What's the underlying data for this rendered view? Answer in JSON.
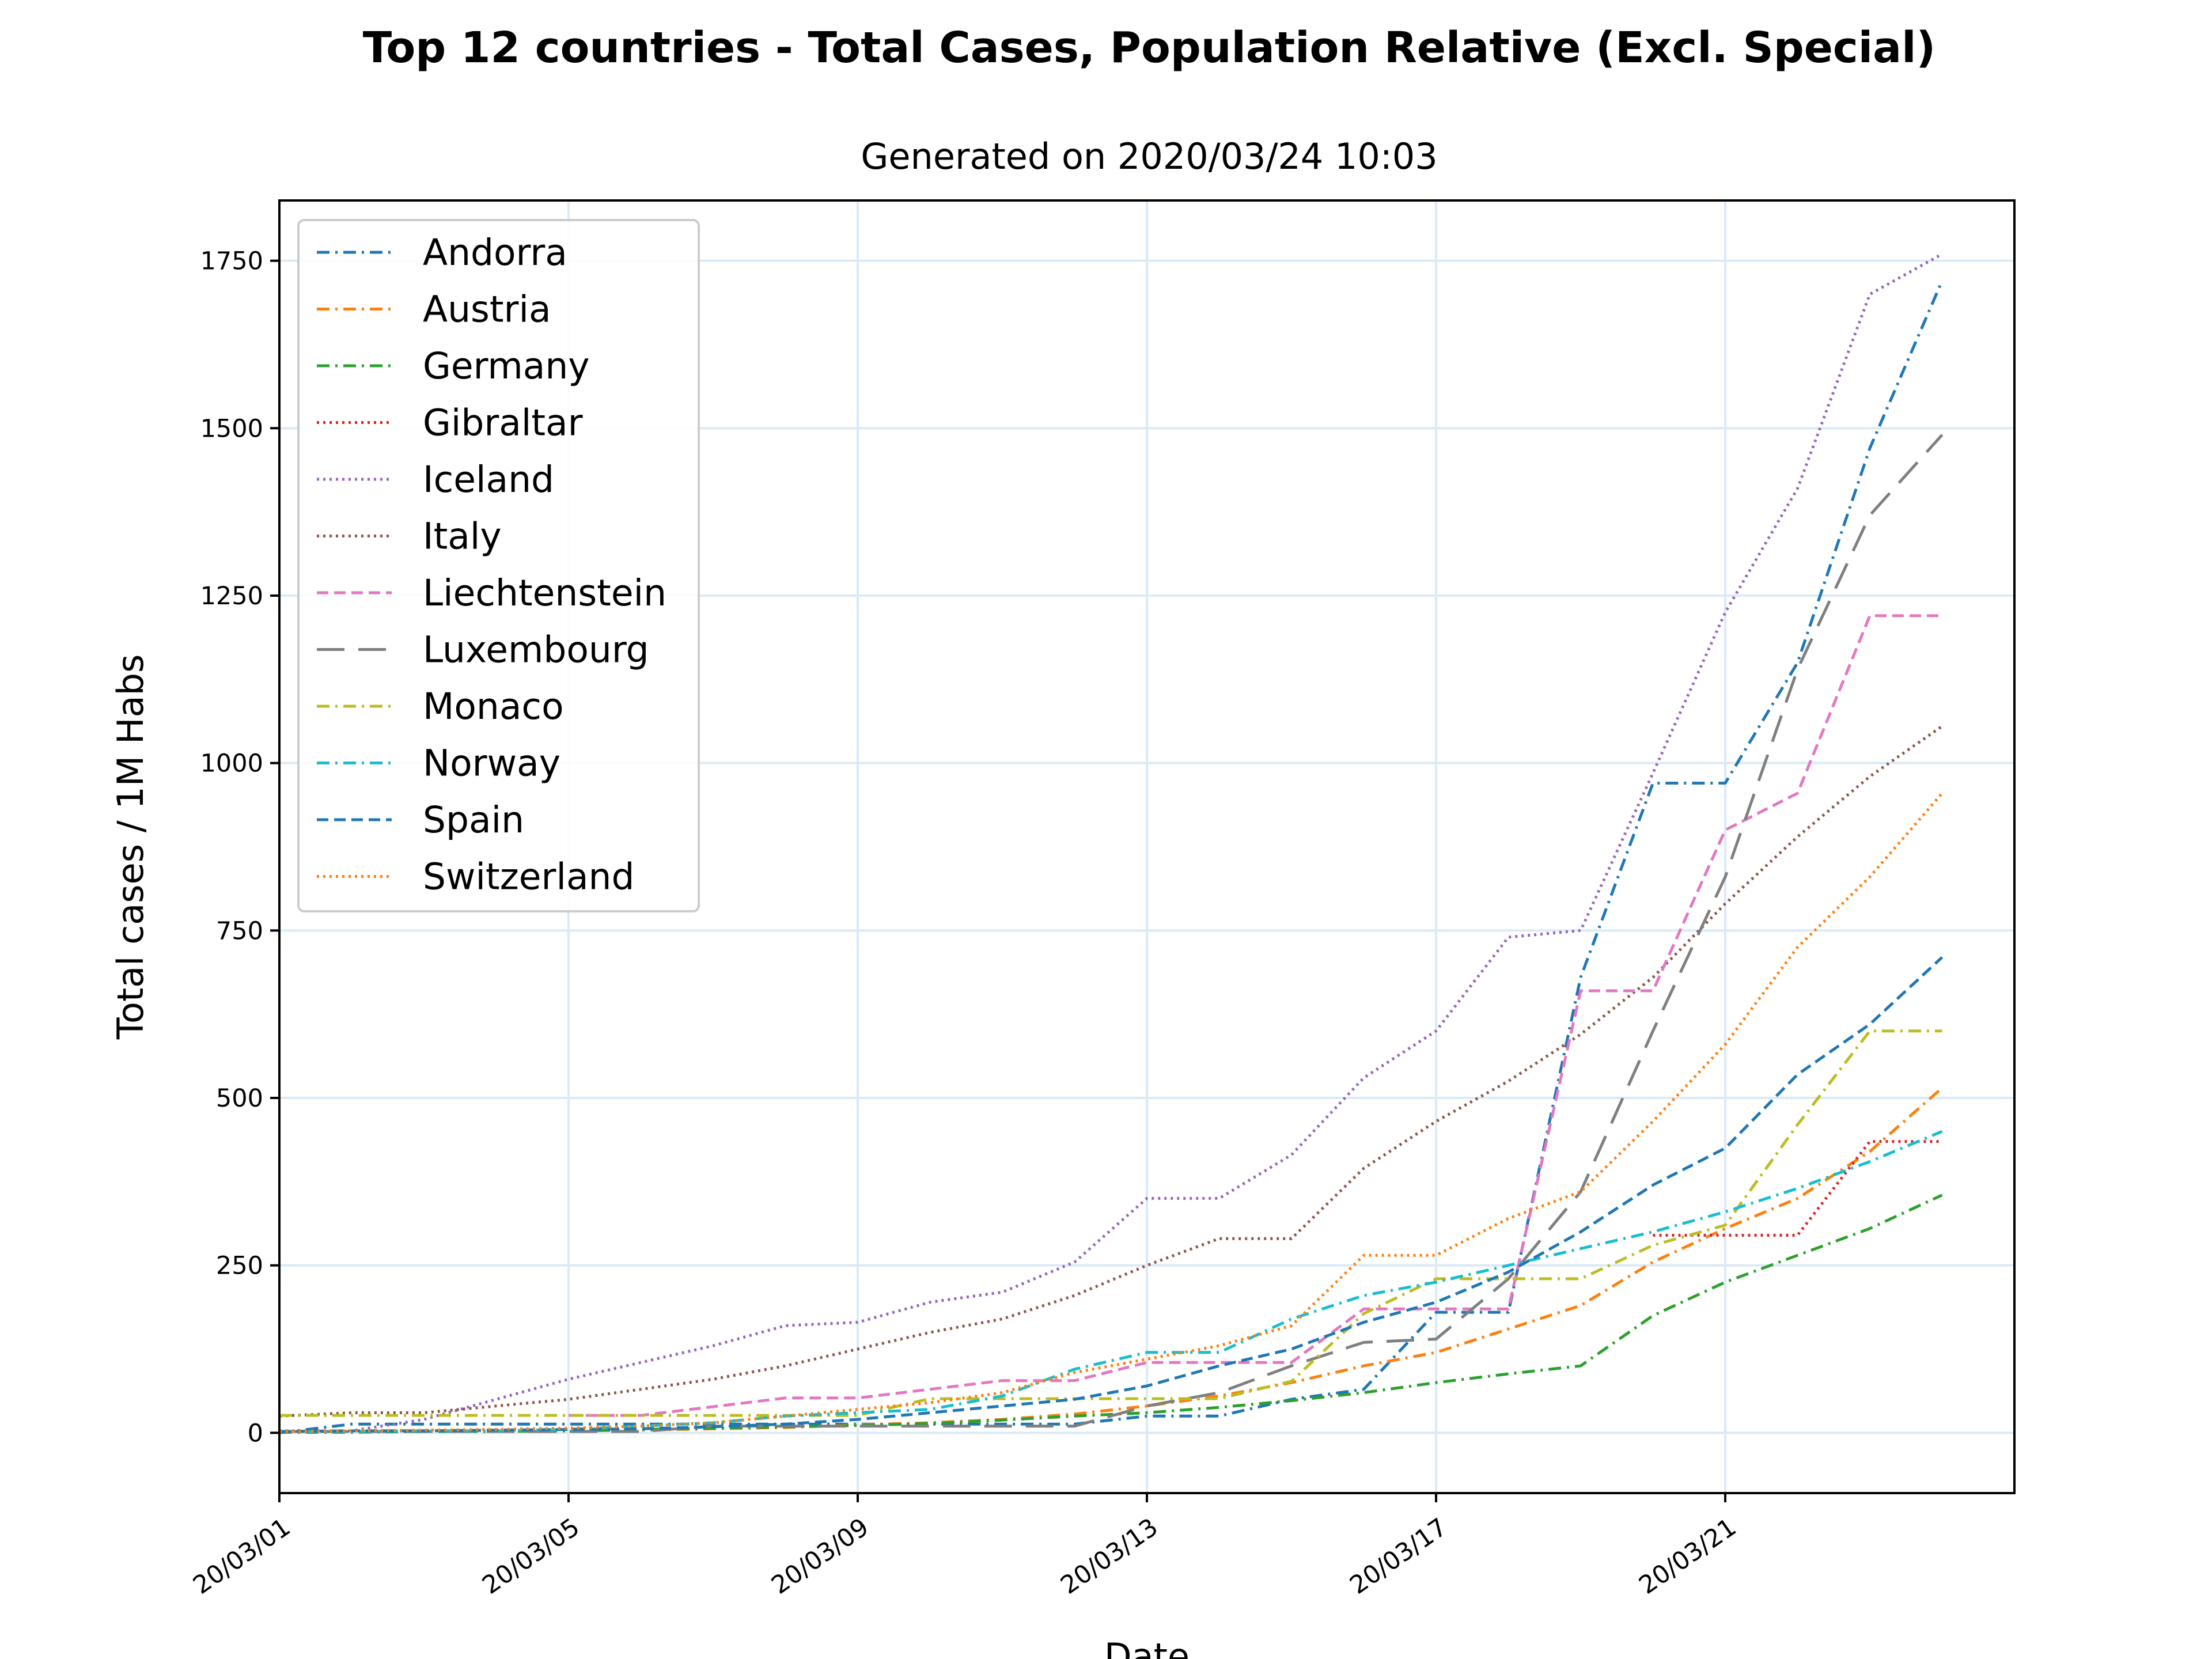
{
  "chart_data": {
    "type": "line",
    "title": "Top 12 countries - Total Cases, Population Relative (Excl. Special)",
    "subtitle": "Generated on 2020/03/24 10:03",
    "xlabel": "Date",
    "ylabel": "Total cases / 1M Habs",
    "x": [
      "2020-03-01",
      "2020-03-02",
      "2020-03-03",
      "2020-03-04",
      "2020-03-05",
      "2020-03-06",
      "2020-03-07",
      "2020-03-08",
      "2020-03-09",
      "2020-03-10",
      "2020-03-11",
      "2020-03-12",
      "2020-03-13",
      "2020-03-14",
      "2020-03-15",
      "2020-03-16",
      "2020-03-17",
      "2020-03-18",
      "2020-03-19",
      "2020-03-20",
      "2020-03-21",
      "2020-03-22",
      "2020-03-23",
      "2020-03-24"
    ],
    "xlim": [
      "2020-03-01",
      "2020-03-25"
    ],
    "xticks": [
      "2020-03-01",
      "2020-03-05",
      "2020-03-09",
      "2020-03-13",
      "2020-03-17",
      "2020-03-21"
    ],
    "xtick_labels": [
      "20/03/01",
      "20/03/05",
      "20/03/09",
      "20/03/13",
      "20/03/17",
      "20/03/21"
    ],
    "ylim": [
      -90,
      1840
    ],
    "yticks": [
      0,
      250,
      500,
      750,
      1000,
      1250,
      1500,
      1750
    ],
    "ytick_labels": [
      "0",
      "250",
      "500",
      "750",
      "1000",
      "1250",
      "1500",
      "1750"
    ],
    "grid": true,
    "legend_position": "top-left",
    "series": [
      {
        "name": "Andorra",
        "color": "#1f77b4",
        "dash": "dashdot",
        "values": [
          0,
          13,
          13,
          13,
          13,
          13,
          13,
          13,
          13,
          13,
          13,
          13,
          25,
          25,
          50,
          65,
          180,
          180,
          680,
          970,
          970,
          1150,
          1470,
          1720
        ]
      },
      {
        "name": "Austria",
        "color": "#ff7f0e",
        "dash": "dashdot",
        "values": [
          1,
          1,
          2,
          3,
          3,
          4,
          6,
          8,
          12,
          15,
          20,
          28,
          40,
          55,
          75,
          100,
          120,
          155,
          190,
          255,
          305,
          350,
          420,
          515
        ]
      },
      {
        "name": "Germany",
        "color": "#2ca02c",
        "dash": "dashdot",
        "values": [
          1,
          1,
          2,
          2,
          3,
          5,
          7,
          9,
          11,
          14,
          19,
          25,
          30,
          38,
          48,
          60,
          75,
          88,
          100,
          175,
          225,
          265,
          305,
          355
        ]
      },
      {
        "name": "Gibraltar",
        "color": "#d62728",
        "dash": "dotted",
        "values": [
          null,
          null,
          null,
          null,
          null,
          null,
          null,
          null,
          null,
          null,
          null,
          null,
          null,
          null,
          null,
          null,
          null,
          null,
          null,
          295,
          295,
          295,
          435,
          435
        ]
      },
      {
        "name": "Iceland",
        "color": "#9467bd",
        "dash": "dotted",
        "values": [
          3,
          3,
          20,
          50,
          80,
          105,
          130,
          160,
          165,
          195,
          210,
          255,
          350,
          350,
          415,
          530,
          600,
          740,
          750,
          985,
          1225,
          1410,
          1700,
          1760
        ]
      },
      {
        "name": "Italy",
        "color": "#8c564b",
        "dash": "dotted",
        "values": [
          25,
          30,
          30,
          40,
          50,
          65,
          80,
          100,
          125,
          150,
          170,
          205,
          250,
          290,
          290,
          395,
          465,
          525,
          595,
          680,
          790,
          890,
          980,
          1055
        ]
      },
      {
        "name": "Liechtenstein",
        "color": "#e377c2",
        "dash": "dashed",
        "values": [
          null,
          null,
          null,
          null,
          26,
          26,
          39,
          52,
          52,
          65,
          78,
          78,
          105,
          105,
          105,
          185,
          185,
          185,
          660,
          660,
          900,
          955,
          1220,
          1220
        ]
      },
      {
        "name": "Luxembourg",
        "color": "#7f7f7f",
        "dash": "longdash",
        "values": [
          2,
          2,
          2,
          2,
          2,
          2,
          10,
          10,
          10,
          10,
          10,
          10,
          40,
          60,
          100,
          135,
          140,
          230,
          360,
          600,
          830,
          1140,
          1370,
          1490
        ]
      },
      {
        "name": "Monaco",
        "color": "#bcbd22",
        "dash": "dashdot",
        "values": [
          26,
          26,
          26,
          26,
          26,
          26,
          26,
          26,
          26,
          51,
          51,
          51,
          51,
          51,
          77,
          178,
          230,
          230,
          230,
          280,
          310,
          460,
          600,
          600
        ]
      },
      {
        "name": "Norway",
        "color": "#17becf",
        "dash": "dashdot",
        "values": [
          2,
          2,
          3,
          3,
          5,
          10,
          15,
          25,
          30,
          35,
          55,
          95,
          120,
          120,
          170,
          205,
          225,
          250,
          275,
          300,
          330,
          365,
          405,
          450
        ]
      },
      {
        "name": "Spain",
        "color": "#1f77b4",
        "dash": "dashed",
        "values": [
          2,
          3,
          3,
          4,
          5,
          6,
          9,
          13,
          20,
          30,
          40,
          50,
          70,
          100,
          125,
          165,
          195,
          240,
          300,
          370,
          425,
          535,
          610,
          710
        ]
      },
      {
        "name": "Switzerland",
        "color": "#ff7f0e",
        "dash": "dotted",
        "values": [
          2,
          3,
          4,
          5,
          7,
          10,
          15,
          25,
          35,
          45,
          60,
          90,
          110,
          130,
          160,
          265,
          265,
          320,
          360,
          465,
          580,
          725,
          830,
          955
        ]
      }
    ]
  }
}
